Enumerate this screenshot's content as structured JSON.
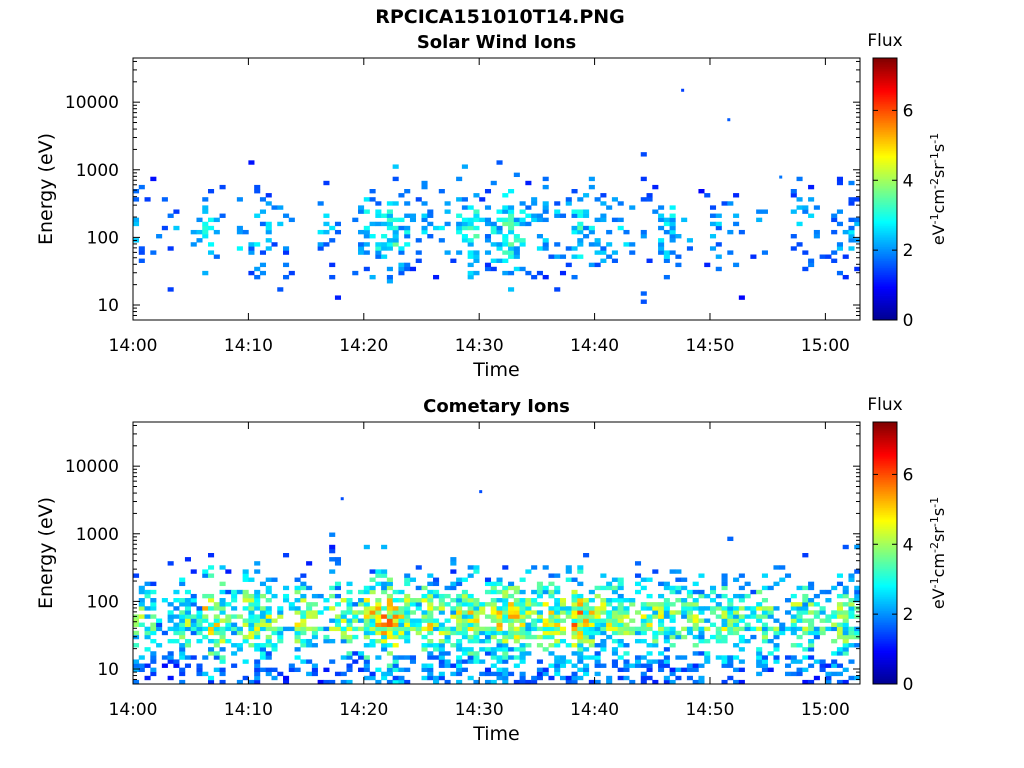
{
  "title": "RPCICA151010T14.PNG",
  "colors": {
    "colormap": "jet",
    "colormap_stops": [
      "#00008f",
      "#0000ff",
      "#00ffff",
      "#ffff00",
      "#ff0000",
      "#800000"
    ]
  },
  "colorbar": {
    "label": "Flux",
    "unit_parts": [
      "eV",
      "-1",
      "cm",
      "-2",
      "sr",
      "-1",
      "s",
      "-1"
    ],
    "ticks": [
      0,
      2,
      4,
      6
    ],
    "range": [
      0,
      7.5
    ]
  },
  "chart_data": [
    {
      "type": "heatmap",
      "title": "Solar Wind Ions",
      "xlabel": "Time",
      "ylabel": "Energy (eV)",
      "xlim": [
        "14:00",
        "15:03"
      ],
      "xticks": [
        "14:00",
        "14:10",
        "14:20",
        "14:30",
        "14:40",
        "14:50",
        "15:00"
      ],
      "yscale": "log",
      "ylim": [
        6,
        45000
      ],
      "yticks": [
        "10",
        "100",
        "1000",
        "10000"
      ],
      "activity": [
        0.35,
        0.2,
        0.1,
        0.15,
        0.0,
        0.2,
        0.6,
        0.1,
        0.0,
        0.5,
        0.6,
        0.3,
        0.25,
        0.2,
        0.0,
        0.0,
        0.3,
        0.3,
        0.0,
        0.5,
        0.6,
        0.65,
        0.9,
        0.5,
        0.2,
        0.4,
        0.3,
        0.2,
        0.6,
        0.8,
        0.3,
        0.5,
        0.9,
        0.9,
        0.5,
        0.5,
        0.4,
        0.3,
        0.7,
        0.5,
        0.6,
        0.4,
        0.4,
        0.2,
        0.3,
        0.4,
        0.5,
        0.2,
        0.2,
        0.1,
        0.3,
        0.2,
        0.2,
        0.1,
        0.2,
        0.0,
        0.0,
        0.3,
        0.3,
        0.2,
        0.2,
        0.3,
        0.5
      ],
      "max_flux": [
        2.8,
        2.5,
        2.2,
        2.5,
        0,
        2.5,
        3.6,
        2.5,
        0,
        3.3,
        3.0,
        2.8,
        2.5,
        2.5,
        0,
        0,
        2.8,
        2.8,
        0,
        3.0,
        3.4,
        3.5,
        4.0,
        3.2,
        2.8,
        3.0,
        2.8,
        2.8,
        3.6,
        3.8,
        2.8,
        3.3,
        3.8,
        3.7,
        3.0,
        3.0,
        3.0,
        2.8,
        3.5,
        3.2,
        3.3,
        2.8,
        3.0,
        2.5,
        2.8,
        3.0,
        3.2,
        2.5,
        2.5,
        2.2,
        2.8,
        2.5,
        2.5,
        2.3,
        2.5,
        0,
        0,
        2.8,
        2.8,
        2.5,
        2.5,
        2.8,
        3.0
      ],
      "isolated_points": [
        {
          "time": "14:47.5",
          "energy": 15000,
          "flux": 1.4
        },
        {
          "time": "14:51.5",
          "energy": 5500,
          "flux": 1.6
        },
        {
          "time": "14:56",
          "energy": 780,
          "flux": 1.8
        }
      ]
    },
    {
      "type": "heatmap",
      "title": "Cometary Ions",
      "xlabel": "Time",
      "ylabel": "Energy (eV)",
      "xlim": [
        "14:00",
        "15:03"
      ],
      "xticks": [
        "14:00",
        "14:10",
        "14:20",
        "14:30",
        "14:40",
        "14:50",
        "15:00"
      ],
      "yscale": "log",
      "ylim": [
        6,
        45000
      ],
      "yticks": [
        "10",
        "100",
        "1000",
        "10000"
      ],
      "activity": [
        0.7,
        0.7,
        0.2,
        0.4,
        0.8,
        0.3,
        0.6,
        0.9,
        0.4,
        0.6,
        0.9,
        0.8,
        0.4,
        0.3,
        0.8,
        0.5,
        0.3,
        0.6,
        0.7,
        0.4,
        0.9,
        0.9,
        1.0,
        0.8,
        0.4,
        0.9,
        0.8,
        0.6,
        0.9,
        0.9,
        0.6,
        0.9,
        1.0,
        0.9,
        0.6,
        0.8,
        0.9,
        0.7,
        1.0,
        0.9,
        0.8,
        0.8,
        0.8,
        0.5,
        0.8,
        0.8,
        0.6,
        0.5,
        0.7,
        0.6,
        0.4,
        0.8,
        0.6,
        0.3,
        0.7,
        0.6,
        0.3,
        0.7,
        0.6,
        0.4,
        0.5,
        0.9,
        0.6
      ],
      "max_flux": [
        4.6,
        4.2,
        3.2,
        4.0,
        4.8,
        3.5,
        5.8,
        5.5,
        4.0,
        5.0,
        5.2,
        4.8,
        4.3,
        3.8,
        5.0,
        4.5,
        3.8,
        4.6,
        5.0,
        4.2,
        5.6,
        6.0,
        6.2,
        5.2,
        4.5,
        5.3,
        5.0,
        4.6,
        5.2,
        5.5,
        4.6,
        5.4,
        5.6,
        5.5,
        4.8,
        5.2,
        5.4,
        5.0,
        6.2,
        5.7,
        5.0,
        5.0,
        5.0,
        4.4,
        5.0,
        5.0,
        4.6,
        4.4,
        4.8,
        4.6,
        4.2,
        5.0,
        4.6,
        4.0,
        4.8,
        4.5,
        4.0,
        4.8,
        4.6,
        4.2,
        4.4,
        5.2,
        4.6
      ],
      "isolated_points": [
        {
          "time": "14:18",
          "energy": 3300,
          "flux": 1.5
        },
        {
          "time": "14:30",
          "energy": 4200,
          "flux": 1.5
        }
      ]
    }
  ]
}
